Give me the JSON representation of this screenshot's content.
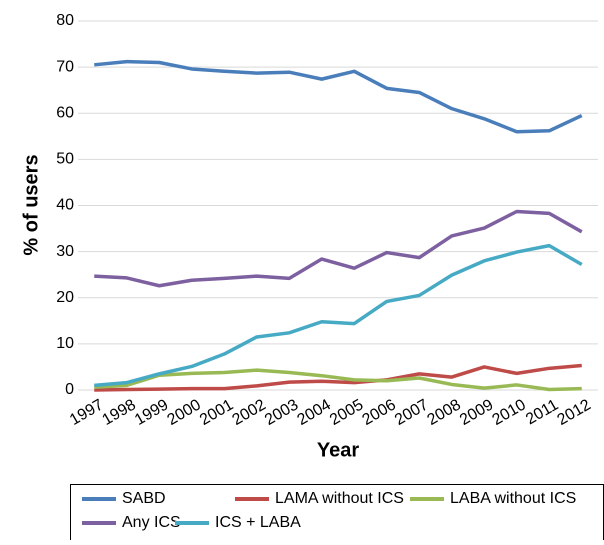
{
  "chart_data": {
    "type": "line",
    "y_label": "% of users",
    "x_label": "Year",
    "categories": [
      "1997",
      "1998",
      "1999",
      "2000",
      "2001",
      "2002",
      "2003",
      "2004",
      "2005",
      "2006",
      "2007",
      "2008",
      "2009",
      "2010",
      "2011",
      "2012"
    ],
    "series": [
      {
        "name": "SABD",
        "color": "#4a7ebb",
        "values": [
          70.5,
          71.2,
          71.0,
          69.6,
          69.1,
          68.7,
          68.9,
          67.4,
          69.1,
          65.4,
          64.5,
          61.0,
          58.8,
          56.0,
          56.2,
          59.5
        ]
      },
      {
        "name": "LAMA without ICS",
        "color": "#be4b48",
        "values": [
          0.0,
          0.1,
          0.2,
          0.3,
          0.3,
          0.9,
          1.7,
          1.9,
          1.6,
          2.2,
          3.5,
          2.8,
          5.0,
          3.6,
          4.7,
          5.3
        ]
      },
      {
        "name": "LABA without ICS",
        "color": "#98b954",
        "values": [
          0.6,
          1.0,
          3.2,
          3.6,
          3.8,
          4.3,
          3.8,
          3.1,
          2.2,
          2.0,
          2.6,
          1.2,
          0.4,
          1.1,
          0.1,
          0.3
        ]
      },
      {
        "name": "Any ICS",
        "color": "#7d60a0",
        "values": [
          24.7,
          24.3,
          22.6,
          23.8,
          24.2,
          24.7,
          24.2,
          28.4,
          26.4,
          29.8,
          28.7,
          33.4,
          35.1,
          38.7,
          38.3,
          34.3
        ]
      },
      {
        "name": "ICS + LABA",
        "color": "#46aac5",
        "values": [
          1.0,
          1.6,
          3.5,
          5.1,
          7.8,
          11.5,
          12.4,
          14.8,
          14.4,
          19.2,
          20.5,
          24.9,
          28.0,
          29.9,
          31.3,
          27.2
        ]
      }
    ],
    "ylim": [
      0,
      80
    ],
    "yticks": [
      0,
      10,
      20,
      30,
      40,
      50,
      60,
      70,
      80
    ],
    "grid": true,
    "legend": "bottom"
  }
}
